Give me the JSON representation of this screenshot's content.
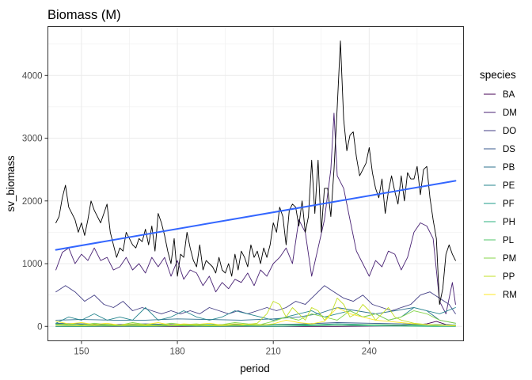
{
  "chart_data": {
    "type": "line",
    "title": "Biomass (M)",
    "xlabel": "period",
    "ylabel": "sv_biomass",
    "xlim": [
      139.5,
      269.5
    ],
    "ylim": [
      -230,
      4780
    ],
    "x_ticks": [
      150,
      180,
      210,
      240
    ],
    "y_ticks": [
      0,
      1000,
      2000,
      3000,
      4000
    ],
    "grid": true,
    "legend": {
      "title": "species",
      "position": "right"
    },
    "series": [
      {
        "name": "BA",
        "color": "#440154",
        "x": [
          142,
          150,
          160,
          170,
          180,
          190,
          200,
          210,
          220,
          230,
          240,
          250,
          258,
          261,
          264,
          267
        ],
        "values": [
          0,
          0,
          0,
          0,
          0,
          0,
          0,
          0,
          0,
          0,
          5,
          10,
          40,
          80,
          30,
          20
        ]
      },
      {
        "name": "DM",
        "color": "#482173",
        "x": [
          142,
          144,
          146,
          148,
          150,
          152,
          154,
          156,
          158,
          160,
          162,
          164,
          166,
          168,
          170,
          172,
          174,
          176,
          178,
          180,
          182,
          184,
          186,
          188,
          190,
          192,
          194,
          196,
          198,
          200,
          202,
          204,
          206,
          208,
          210,
          212,
          214,
          216,
          218,
          220,
          222,
          224,
          226,
          228,
          229,
          230,
          232,
          234,
          236,
          238,
          240,
          242,
          244,
          246,
          248,
          250,
          252,
          254,
          256,
          258,
          260,
          261,
          262,
          264,
          266,
          267
        ],
        "values": [
          900,
          1180,
          1250,
          1000,
          1150,
          1050,
          1250,
          1050,
          1100,
          900,
          950,
          1100,
          900,
          1000,
          850,
          1100,
          950,
          1100,
          800,
          1050,
          750,
          900,
          850,
          650,
          800,
          550,
          700,
          600,
          750,
          700,
          850,
          650,
          900,
          800,
          1000,
          1100,
          1250,
          1000,
          1700,
          1500,
          800,
          1250,
          1700,
          2500,
          3400,
          2400,
          2200,
          1700,
          1200,
          1000,
          800,
          1050,
          950,
          1200,
          1150,
          900,
          1100,
          1500,
          1650,
          1600,
          1400,
          900,
          400,
          200,
          700,
          350
        ]
      },
      {
        "name": "DO",
        "color": "#433E85",
        "x": [
          142,
          145,
          148,
          151,
          154,
          157,
          160,
          163,
          166,
          169,
          172,
          175,
          178,
          181,
          184,
          187,
          190,
          193,
          196,
          199,
          202,
          205,
          208,
          211,
          214,
          217,
          220,
          223,
          226,
          229,
          232,
          235,
          238,
          241,
          244,
          247,
          250,
          253,
          256,
          259,
          262,
          265,
          267
        ],
        "values": [
          550,
          650,
          550,
          400,
          500,
          350,
          300,
          400,
          250,
          300,
          250,
          200,
          250,
          200,
          250,
          200,
          300,
          250,
          200,
          250,
          200,
          250,
          300,
          250,
          300,
          400,
          350,
          500,
          650,
          550,
          450,
          400,
          500,
          350,
          300,
          250,
          300,
          350,
          500,
          550,
          450,
          350,
          200
        ]
      },
      {
        "name": "DS",
        "color": "#38598C",
        "x": [
          142,
          150,
          160,
          170,
          180,
          190,
          200,
          210,
          220,
          230,
          240,
          250,
          260,
          267
        ],
        "values": [
          50,
          40,
          30,
          40,
          30,
          30,
          30,
          30,
          40,
          60,
          50,
          40,
          30,
          20
        ]
      },
      {
        "name": "PB",
        "color": "#2D708E",
        "x": [
          142,
          150,
          160,
          170,
          180,
          190,
          200,
          210,
          218,
          224,
          230,
          236,
          242,
          248,
          254,
          258,
          262,
          267
        ],
        "values": [
          100,
          110,
          100,
          100,
          120,
          110,
          100,
          120,
          150,
          200,
          300,
          250,
          200,
          250,
          300,
          250,
          100,
          50
        ]
      },
      {
        "name": "PE",
        "color": "#25858E",
        "x": [
          142,
          146,
          150,
          154,
          158,
          162,
          166,
          170,
          174,
          178,
          182,
          186,
          190,
          194,
          198,
          202,
          206,
          210,
          214,
          218,
          222,
          226,
          230,
          234,
          238,
          242,
          246,
          250,
          254,
          258,
          262,
          267
        ],
        "values": [
          50,
          150,
          100,
          200,
          100,
          150,
          100,
          300,
          100,
          150,
          250,
          150,
          100,
          150,
          250,
          200,
          150,
          100,
          150,
          200,
          250,
          150,
          200,
          250,
          150,
          200,
          100,
          150,
          300,
          250,
          200,
          300
        ]
      },
      {
        "name": "PF",
        "color": "#1E9B8A",
        "x": [
          142,
          150,
          160,
          170,
          180,
          190,
          200,
          210,
          220,
          230,
          240,
          250,
          260,
          267
        ],
        "values": [
          40,
          30,
          20,
          30,
          20,
          30,
          20,
          30,
          20,
          40,
          30,
          20,
          30,
          20
        ]
      },
      {
        "name": "PH",
        "color": "#2BB07F",
        "x": [
          142,
          150,
          160,
          170,
          180,
          190,
          200,
          210,
          220,
          230,
          240,
          250,
          260,
          267
        ],
        "values": [
          0,
          0,
          5,
          0,
          10,
          0,
          5,
          0,
          10,
          20,
          10,
          5,
          0,
          0
        ]
      },
      {
        "name": "PL",
        "color": "#51C56A",
        "x": [
          142,
          150,
          160,
          170,
          180,
          190,
          200,
          210,
          220,
          230,
          240,
          250,
          260,
          267
        ],
        "values": [
          20,
          30,
          10,
          20,
          10,
          20,
          10,
          20,
          30,
          20,
          30,
          20,
          10,
          20
        ]
      },
      {
        "name": "PM",
        "color": "#85D54A",
        "x": [
          142,
          146,
          150,
          154,
          158,
          162,
          166,
          170,
          174,
          178,
          182,
          186,
          190,
          194,
          198,
          202,
          206,
          210,
          214,
          218,
          222,
          226,
          230,
          234,
          238,
          242,
          246,
          250,
          254,
          258,
          262,
          267
        ],
        "values": [
          30,
          40,
          20,
          50,
          30,
          20,
          60,
          30,
          20,
          50,
          30,
          40,
          20,
          30,
          60,
          40,
          30,
          80,
          150,
          100,
          200,
          150,
          100,
          250,
          150,
          200,
          100,
          150,
          250,
          200,
          100,
          50
        ]
      },
      {
        "name": "PP",
        "color": "#C2DF23",
        "x": [
          142,
          150,
          160,
          170,
          180,
          190,
          200,
          205,
          208,
          210,
          212,
          214,
          216,
          218,
          220,
          222,
          224,
          226,
          228,
          230,
          232,
          234,
          236,
          238,
          240,
          242,
          244,
          246,
          248,
          250,
          254,
          258,
          262,
          267
        ],
        "values": [
          20,
          10,
          20,
          10,
          20,
          10,
          20,
          50,
          200,
          400,
          350,
          150,
          300,
          200,
          100,
          300,
          250,
          100,
          200,
          450,
          350,
          150,
          200,
          350,
          250,
          100,
          200,
          300,
          150,
          100,
          50,
          30,
          20,
          10
        ]
      },
      {
        "name": "RM",
        "color": "#FDE725",
        "x": [
          142,
          146,
          150,
          154,
          158,
          162,
          166,
          170,
          174,
          178,
          182,
          186,
          190,
          194,
          198,
          202,
          206,
          210,
          214,
          218,
          222,
          226,
          230,
          234,
          238,
          242,
          246,
          250,
          254,
          258,
          262,
          267
        ],
        "values": [
          80,
          40,
          60,
          30,
          50,
          20,
          40,
          30,
          60,
          20,
          40,
          30,
          50,
          20,
          40,
          30,
          20,
          40,
          100,
          60,
          40,
          80,
          300,
          200,
          150,
          100,
          80,
          60,
          40,
          30,
          20,
          10
        ]
      },
      {
        "name": "",
        "color": "#000000",
        "x": [
          142,
          143,
          144,
          145,
          146,
          147,
          148,
          149,
          150,
          151,
          152,
          153,
          154,
          155,
          156,
          157,
          158,
          159,
          160,
          161,
          162,
          163,
          164,
          165,
          166,
          167,
          168,
          169,
          170,
          171,
          172,
          173,
          174,
          175,
          176,
          177,
          178,
          179,
          180,
          181,
          182,
          183,
          184,
          185,
          186,
          187,
          188,
          189,
          190,
          191,
          192,
          193,
          194,
          195,
          196,
          197,
          198,
          199,
          200,
          201,
          202,
          203,
          204,
          205,
          206,
          207,
          208,
          209,
          210,
          211,
          212,
          213,
          214,
          215,
          216,
          217,
          218,
          219,
          220,
          221,
          222,
          223,
          224,
          225,
          226,
          227,
          228,
          229,
          230,
          231,
          232,
          233,
          234,
          235,
          236,
          237,
          238,
          239,
          240,
          241,
          242,
          243,
          244,
          245,
          246,
          247,
          248,
          249,
          250,
          251,
          252,
          253,
          254,
          255,
          256,
          257,
          258,
          259,
          260,
          261,
          262,
          263,
          264,
          265,
          266,
          267
        ],
        "values": [
          1650,
          1750,
          2050,
          2250,
          1900,
          1800,
          1700,
          1500,
          1650,
          1450,
          1700,
          2000,
          1850,
          1750,
          1650,
          1800,
          1950,
          1500,
          1300,
          1100,
          1250,
          1200,
          1500,
          1400,
          1300,
          1250,
          1400,
          1350,
          1550,
          1300,
          1600,
          1200,
          1800,
          1650,
          1450,
          1200,
          1000,
          1400,
          800,
          1150,
          1100,
          1500,
          1250,
          1050,
          950,
          1300,
          900,
          1050,
          1000,
          950,
          850,
          1100,
          900,
          850,
          1000,
          800,
          1150,
          900,
          1200,
          1100,
          950,
          1300,
          1100,
          1200,
          1000,
          1250,
          1100,
          1300,
          1650,
          1500,
          1900,
          1750,
          1300,
          1850,
          1950,
          1900,
          1600,
          2000,
          1500,
          1750,
          2650,
          1800,
          2650,
          1500,
          2200,
          2200,
          1750,
          2500,
          3500,
          4550,
          3300,
          2800,
          3050,
          3100,
          2700,
          2400,
          2500,
          2600,
          2850,
          2450,
          2200,
          2050,
          2350,
          1800,
          2150,
          2400,
          2150,
          1950,
          2400,
          2000,
          2450,
          2350,
          2350,
          2550,
          2100,
          2500,
          2550,
          2050,
          1700,
          1400,
          350,
          600,
          1150,
          1300,
          1150,
          1050
        ]
      },
      {
        "name": "",
        "color": "#3366FF",
        "trend": true,
        "x": [
          142,
          267
        ],
        "values": [
          1220,
          2320
        ]
      }
    ]
  }
}
